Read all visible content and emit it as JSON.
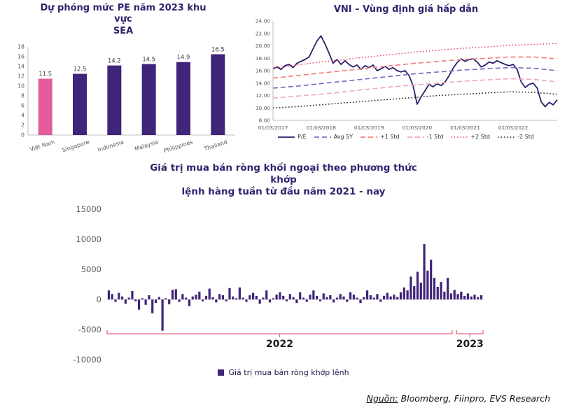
{
  "chart_data": [
    {
      "id": "pe_sea",
      "type": "bar",
      "title": "Dự phóng mức PE năm 2023 khu vực SEA",
      "title_lines": [
        "Dự phóng mức PE năm 2023 khu vực",
        "SEA"
      ],
      "categories": [
        "Việt Nam",
        "Singapore",
        "Indonesia",
        "Malaysia",
        "Philippines",
        "Thailand"
      ],
      "values": [
        11.5,
        12.5,
        14.2,
        14.5,
        14.9,
        16.5
      ],
      "value_labels": [
        "11.5",
        "12.5",
        "14.2",
        "14.5",
        "14.9",
        "16.5"
      ],
      "bar_colors": [
        "#e45c9c",
        "#3f2479",
        "#3f2479",
        "#3f2479",
        "#3f2479",
        "#3f2479"
      ],
      "ylim": [
        0,
        18
      ],
      "ytick_step": 2,
      "grid": false
    },
    {
      "id": "vni_pe",
      "type": "line",
      "title": "VNI – Vùng định giá hấp dẫn",
      "ylim": [
        8,
        24
      ],
      "ytick_step": 2,
      "ytick_format": "2dp",
      "xticklabels": [
        "01/03/2017",
        "01/03/2018",
        "01/03/2019",
        "01/03/2020",
        "01/03/2021",
        "01/03/2022"
      ],
      "legend_position": "bottom",
      "series": [
        {
          "name": "P/E",
          "color": "#2b1e6b",
          "dash": "solid",
          "width": 1.8,
          "values": [
            16.3,
            16.6,
            16.2,
            16.8,
            17.0,
            16.5,
            17.2,
            17.5,
            17.8,
            18.2,
            19.5,
            20.8,
            21.6,
            20.3,
            18.8,
            17.2,
            17.8,
            17.0,
            17.6,
            17.0,
            16.6,
            16.9,
            16.2,
            16.8,
            16.5,
            16.9,
            16.0,
            16.3,
            16.7,
            16.2,
            16.5,
            16.0,
            15.8,
            16.0,
            15.2,
            13.6,
            10.6,
            11.8,
            12.8,
            13.8,
            13.4,
            13.9,
            13.6,
            14.2,
            15.2,
            16.4,
            17.3,
            17.9,
            17.5,
            17.8,
            17.9,
            17.4,
            16.6,
            16.9,
            17.4,
            17.2,
            17.6,
            17.3,
            17.0,
            16.8,
            17.0,
            16.2,
            14.2,
            13.3,
            13.8,
            14.0,
            13.2,
            11.0,
            10.2,
            10.9,
            10.5,
            11.3
          ]
        },
        {
          "name": "Avg 5Y",
          "color": "#7e6fc0",
          "dash": "dashed",
          "width": 1.7,
          "values": [
            13.2,
            13.5,
            13.9,
            14.3,
            14.7,
            15.1,
            15.5,
            15.8,
            16.1,
            16.3,
            16.5,
            16.4,
            16.0
          ]
        },
        {
          "name": "+1 Std",
          "color": "#f4827f",
          "dash": "dashed",
          "width": 1.7,
          "values": [
            14.8,
            15.2,
            15.6,
            16.0,
            16.4,
            16.8,
            17.2,
            17.5,
            17.8,
            18.0,
            18.2,
            18.2,
            17.9
          ]
        },
        {
          "name": "-1 Std",
          "color": "#f0a8bc",
          "dash": "dashed",
          "width": 1.7,
          "values": [
            11.6,
            11.9,
            12.2,
            12.6,
            13.0,
            13.4,
            13.7,
            14.0,
            14.3,
            14.5,
            14.7,
            14.6,
            14.2
          ]
        },
        {
          "name": "+2 Std",
          "color": "#e8506e",
          "dash": "dotted",
          "width": 1.6,
          "values": [
            16.4,
            16.9,
            17.4,
            17.8,
            18.2,
            18.6,
            19.0,
            19.3,
            19.6,
            19.8,
            20.1,
            20.2,
            20.4
          ]
        },
        {
          "name": "-2 Std",
          "color": "#1f1f1f",
          "dash": "dotted",
          "width": 1.5,
          "values": [
            10.0,
            10.2,
            10.5,
            10.8,
            11.1,
            11.4,
            11.7,
            12.0,
            12.2,
            12.4,
            12.6,
            12.5,
            12.2
          ]
        }
      ]
    },
    {
      "id": "foreign_net",
      "type": "bar",
      "title": "Giá trị mua bán ròng khối ngoại theo phương thức khớp lệnh hàng tuần từ đầu năm 2021 - nay",
      "title_lines": [
        "Giá trị mua bán ròng khối ngoại theo phương thức khớp",
        "lệnh hàng tuần từ đầu năm 2021 - nay"
      ],
      "ylim": [
        -10000,
        15000
      ],
      "ytick_step": 5000,
      "bar_color": "#3f2479",
      "bracket_color": "#e8647e",
      "legend": "Giá trị mua bán ròng khớp lệnh",
      "x_brackets": [
        {
          "label": "2022",
          "from": 0.0,
          "to": 0.918
        },
        {
          "label": "2023",
          "from": 0.93,
          "to": 1.0
        }
      ],
      "values": [
        1500,
        900,
        -400,
        1100,
        500,
        -700,
        300,
        1400,
        -300,
        -1700,
        200,
        -900,
        700,
        -2300,
        -600,
        400,
        -5200,
        200,
        -800,
        1600,
        1700,
        -400,
        900,
        300,
        -1100,
        500,
        800,
        1300,
        -300,
        600,
        1800,
        400,
        -500,
        900,
        700,
        -300,
        1900,
        500,
        200,
        2000,
        300,
        -400,
        700,
        1100,
        600,
        -700,
        300,
        1500,
        -500,
        200,
        800,
        1200,
        600,
        -300,
        900,
        400,
        -600,
        1200,
        300,
        -400,
        800,
        1500,
        600,
        -300,
        1000,
        400,
        700,
        -500,
        300,
        900,
        500,
        -400,
        1200,
        800,
        300,
        -600,
        400,
        1500,
        700,
        300,
        900,
        -400,
        600,
        1100,
        500,
        800,
        400,
        1200,
        2000,
        1500,
        3800,
        2200,
        4600,
        2800,
        9200,
        4800,
        6600,
        3600,
        2100,
        2900,
        1300,
        3600,
        1000,
        1600,
        900,
        1300,
        600,
        1000,
        500,
        800,
        400,
        700
      ]
    }
  ],
  "source": {
    "label": "Nguồn:",
    "text": " Bloomberg, Fiinpro, EVS Research"
  }
}
